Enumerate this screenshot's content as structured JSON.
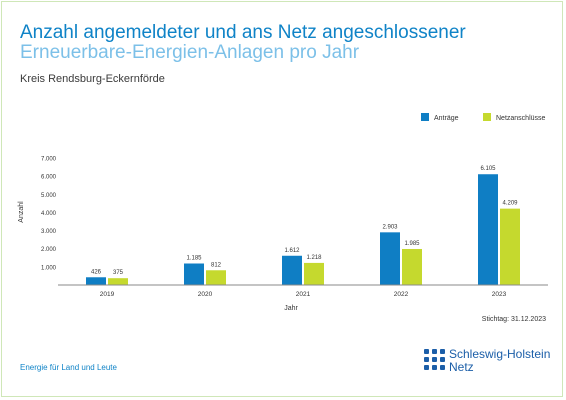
{
  "header": {
    "title": "Anzahl angemeldeter und ans Netz angeschlossener",
    "subtitle": "Erneuerbare-Energien-Anlagen pro Jahr",
    "region": "Kreis Rendsburg-Eckernförde"
  },
  "footer": {
    "tagline": "Energie für Land und Leute",
    "stichtag": "Stichtag: 31.12.2023",
    "logo_line1": "Schleswig-Holstein",
    "logo_line2": "Netz"
  },
  "colors": {
    "antraege": "#0f7ec4",
    "netzanschluesse": "#c5d92e",
    "title": "#0f83c7"
  },
  "chart_data": {
    "type": "bar",
    "categories": [
      "2019",
      "2020",
      "2021",
      "2022",
      "2023"
    ],
    "series": [
      {
        "name": "Anträge",
        "values": [
          426,
          1185,
          1612,
          2903,
          6105
        ],
        "labels": [
          "426",
          "1.185",
          "1.612",
          "2.903",
          "6.105"
        ]
      },
      {
        "name": "Netzanschlüsse",
        "values": [
          375,
          812,
          1218,
          1985,
          4209
        ],
        "labels": [
          "375",
          "812",
          "1.218",
          "1.985",
          "4.209"
        ]
      }
    ],
    "xlabel": "Jahr",
    "ylabel": "Anzahl",
    "ylim": [
      0,
      7000
    ],
    "yticks": [
      1000,
      2000,
      3000,
      4000,
      5000,
      6000,
      7000
    ],
    "ytick_labels": [
      "1.000",
      "2.000",
      "3.000",
      "4.000",
      "5.000",
      "6.000",
      "7.000"
    ],
    "grid": false,
    "legend": "top-right"
  }
}
